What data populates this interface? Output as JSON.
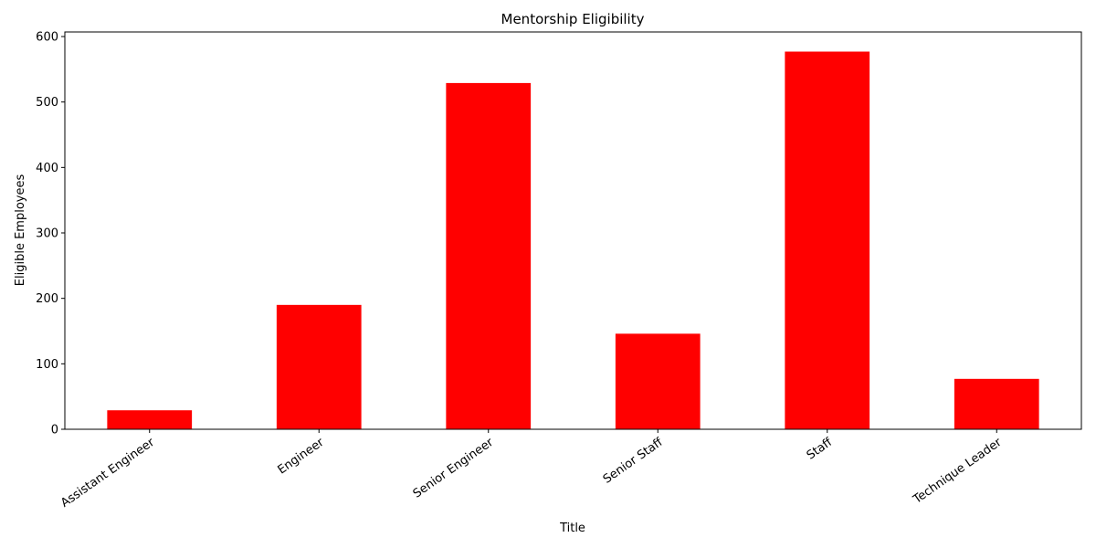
{
  "chart_data": {
    "type": "bar",
    "title": "Mentorship Eligibility",
    "xlabel": "Title",
    "ylabel": "Eligible Employees",
    "categories": [
      "Assistant Engineer",
      "Engineer",
      "Senior Engineer",
      "Senior Staff",
      "Staff",
      "Technique Leader"
    ],
    "values": [
      29,
      190,
      529,
      146,
      577,
      77
    ],
    "ylim": [
      0,
      607
    ],
    "yticks": [
      0,
      100,
      200,
      300,
      400,
      500,
      600
    ],
    "grid": false,
    "legend": "none",
    "bar_color": "#ff0000"
  }
}
